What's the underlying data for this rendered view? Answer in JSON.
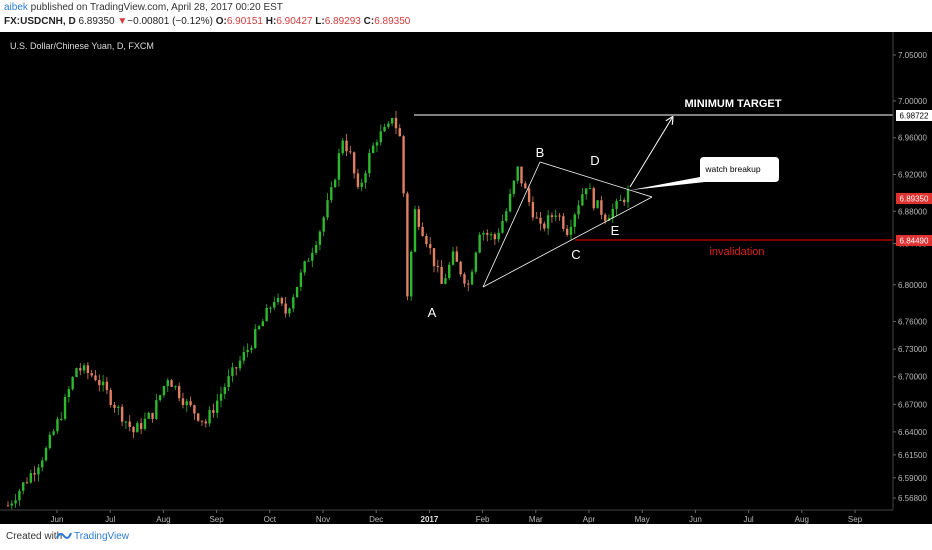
{
  "header": {
    "author": "aibek",
    "published": " published on TradingView.com, April 28, 2017 00:20 EST",
    "symbol": "FX:USDCNH, D",
    "last_price": "6.89350",
    "change_arrow": "▼",
    "change": "−0.00801 (−0.12%)",
    "open_label": "O:",
    "open": "6.90151",
    "high_label": "H:",
    "high": "6.90427",
    "low_label": "L:",
    "low": "6.89293",
    "close_label": "C:",
    "close": "6.89350"
  },
  "chart_data": {
    "type": "candlestick",
    "title": "U.S. Dollar/Chinese Yuan, D, FXCM",
    "ylim": [
      6.555,
      7.075
    ],
    "y_ticks": [
      "7.05000",
      "7.00000",
      "6.96000",
      "6.92000",
      "6.88000",
      "6.84490",
      "6.80000",
      "6.76000",
      "6.73000",
      "6.70000",
      "6.67000",
      "6.64000",
      "6.61500",
      "6.59000",
      "6.56800"
    ],
    "x_labels": [
      "Jun",
      "Jul",
      "Aug",
      "Sep",
      "Oct",
      "Nov",
      "Dec",
      "2017",
      "Feb",
      "Mar",
      "Apr",
      "May",
      "Jun",
      "Jul",
      "Aug",
      "Sep"
    ],
    "price_path": [
      [
        0,
        6.56
      ],
      [
        7,
        6.6
      ],
      [
        10,
        6.62
      ],
      [
        14,
        6.66
      ],
      [
        18,
        6.71
      ],
      [
        23,
        6.7
      ],
      [
        28,
        6.67
      ],
      [
        33,
        6.64
      ],
      [
        38,
        6.66
      ],
      [
        42,
        6.7
      ],
      [
        47,
        6.67
      ],
      [
        52,
        6.65
      ],
      [
        57,
        6.69
      ],
      [
        63,
        6.73
      ],
      [
        67,
        6.76
      ],
      [
        70,
        6.785
      ],
      [
        73,
        6.77
      ],
      [
        78,
        6.82
      ],
      [
        82,
        6.86
      ],
      [
        85,
        6.9
      ],
      [
        88,
        6.96
      ],
      [
        90,
        6.94
      ],
      [
        92,
        6.9
      ],
      [
        95,
        6.94
      ],
      [
        97,
        6.96
      ],
      [
        100,
        6.97
      ],
      [
        101,
        6.985
      ],
      [
        103,
        6.96
      ],
      [
        104,
        6.9
      ],
      [
        105,
        6.79
      ],
      [
        107,
        6.88
      ],
      [
        110,
        6.85
      ],
      [
        114,
        6.8
      ],
      [
        117,
        6.83
      ],
      [
        121,
        6.8
      ],
      [
        124,
        6.86
      ],
      [
        128,
        6.85
      ],
      [
        131,
        6.88
      ],
      [
        134,
        6.925
      ],
      [
        137,
        6.89
      ],
      [
        140,
        6.86
      ],
      [
        144,
        6.88
      ],
      [
        147,
        6.86
      ],
      [
        150,
        6.89
      ],
      [
        152,
        6.91
      ],
      [
        154,
        6.89
      ],
      [
        157,
        6.875
      ],
      [
        160,
        6.885
      ],
      [
        163,
        6.9
      ]
    ],
    "series": [
      {
        "name": "resistance",
        "color": "#ffffff",
        "values": [
          [
            0,
            6.985
          ],
          [
            191,
            6.985
          ]
        ]
      },
      {
        "name": "support",
        "color": "#ff0000",
        "values": [
          [
            0,
            6.8449
          ],
          [
            191,
            6.8449
          ]
        ]
      }
    ],
    "last_price_badge": "6.89350",
    "target_badge": "6.98722",
    "invalidation_badge": "6.84490",
    "annotations": {
      "a": "A",
      "b": "B",
      "c": "C",
      "d": "D",
      "e": "E",
      "target": "MINIMUM TARGET",
      "callout": "watch breakup",
      "invalidation": "invalidation"
    },
    "colors": {
      "up": "#2eb82e",
      "down": "#e08060",
      "background": "#000000",
      "last_price_badge": "#e03030",
      "invalidation": "#dd2222"
    }
  },
  "footer": {
    "created_with": "Created with",
    "brand": "TradingView"
  }
}
